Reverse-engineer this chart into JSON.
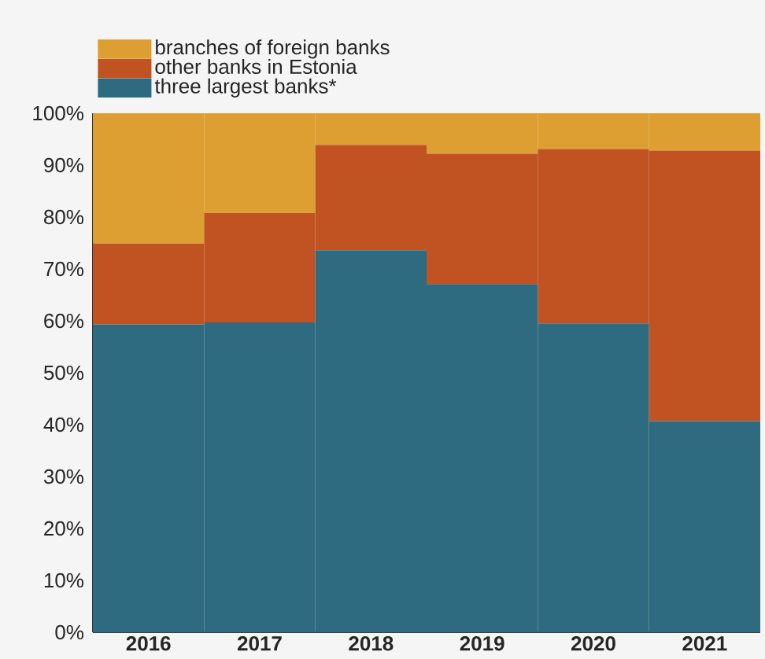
{
  "chart_data": {
    "type": "bar",
    "stacked": true,
    "categories": [
      "2016",
      "2017",
      "2018",
      "2019",
      "2020",
      "2021"
    ],
    "series": [
      {
        "name": "three largest banks*",
        "color": "#2e6b80",
        "values": [
          59.3,
          59.7,
          73.6,
          67.1,
          59.5,
          40.7
        ]
      },
      {
        "name": "other banks in Estonia",
        "color": "#c05321",
        "values": [
          15.6,
          21.1,
          20.3,
          25.1,
          33.6,
          52.1
        ]
      },
      {
        "name": "branches of foreign banks",
        "color": "#dd9f32",
        "values": [
          25.1,
          19.2,
          6.1,
          7.8,
          6.9,
          7.2
        ]
      }
    ],
    "ylim": [
      0,
      100
    ],
    "yticks": [
      {
        "value": 0,
        "label": "0%"
      },
      {
        "value": 10,
        "label": "10%"
      },
      {
        "value": 20,
        "label": "20%"
      },
      {
        "value": 30,
        "label": "30%"
      },
      {
        "value": 40,
        "label": "40%"
      },
      {
        "value": 50,
        "label": "50%"
      },
      {
        "value": 60,
        "label": "60%"
      },
      {
        "value": 70,
        "label": "70%"
      },
      {
        "value": 80,
        "label": "80%"
      },
      {
        "value": 90,
        "label": "90%"
      },
      {
        "value": 100,
        "label": "100%"
      }
    ],
    "grid": false,
    "legend": "top left"
  }
}
